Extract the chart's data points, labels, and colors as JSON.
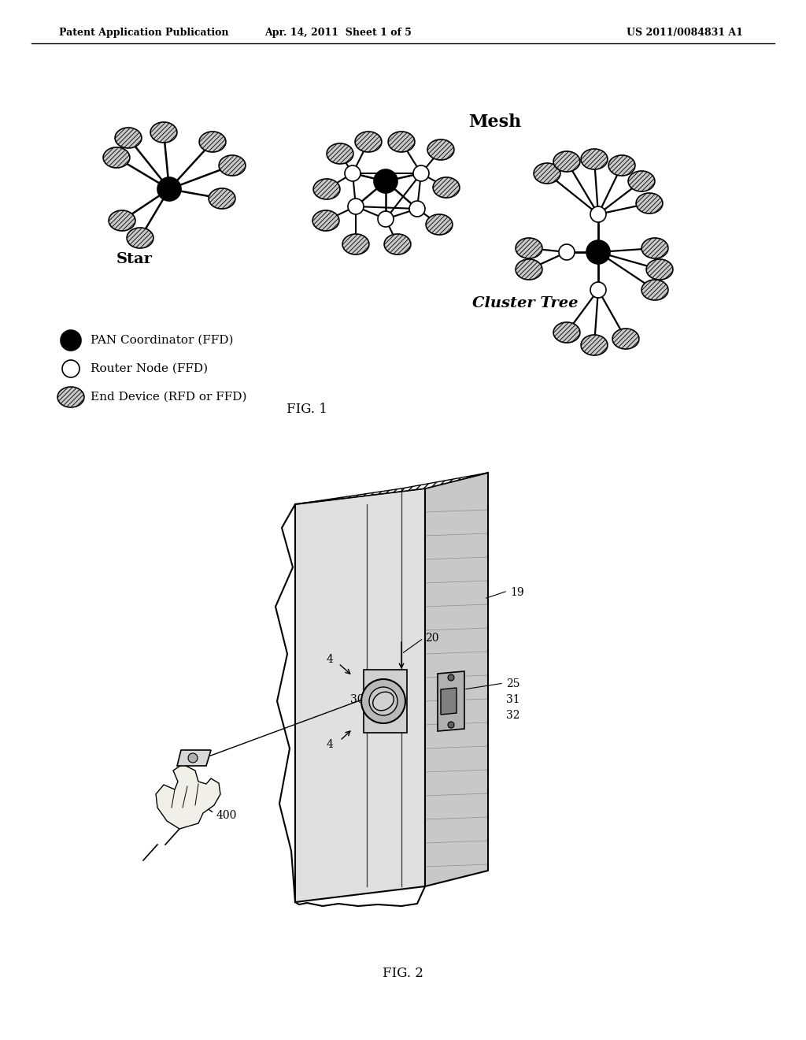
{
  "background_color": "#ffffff",
  "header_left": "Patent Application Publication",
  "header_mid": "Apr. 14, 2011  Sheet 1 of 5",
  "header_right": "US 2011/0084831 A1",
  "fig1_label": "FIG. 1",
  "fig2_label": "FIG. 2",
  "star_label": "Star",
  "mesh_label": "Mesh",
  "cluster_label": "Cluster Tree",
  "legend_pan": "PAN Coordinator (FFD)",
  "legend_router": "Router Node (FFD)",
  "legend_end": "End Device (RFD or FFD)"
}
